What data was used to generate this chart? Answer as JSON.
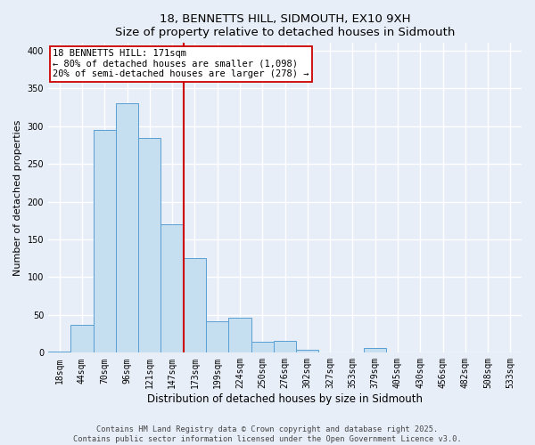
{
  "title": "18, BENNETTS HILL, SIDMOUTH, EX10 9XH",
  "subtitle": "Size of property relative to detached houses in Sidmouth",
  "xlabel": "Distribution of detached houses by size in Sidmouth",
  "ylabel": "Number of detached properties",
  "bar_labels": [
    "18sqm",
    "44sqm",
    "70sqm",
    "96sqm",
    "121sqm",
    "147sqm",
    "173sqm",
    "199sqm",
    "224sqm",
    "250sqm",
    "276sqm",
    "302sqm",
    "327sqm",
    "353sqm",
    "379sqm",
    "405sqm",
    "430sqm",
    "456sqm",
    "482sqm",
    "508sqm",
    "533sqm"
  ],
  "bar_heights": [
    2,
    37,
    295,
    330,
    284,
    170,
    125,
    42,
    46,
    15,
    16,
    4,
    0,
    0,
    6,
    0,
    0,
    0,
    0,
    0,
    0
  ],
  "bar_color": "#c5dff0",
  "bar_edge_color": "#5a9fd4",
  "vline_color": "#cc0000",
  "ylim": [
    0,
    410
  ],
  "yticks": [
    0,
    50,
    100,
    150,
    200,
    250,
    300,
    350,
    400
  ],
  "annotation_title": "18 BENNETTS HILL: 171sqm",
  "annotation_line1": "← 80% of detached houses are smaller (1,098)",
  "annotation_line2": "20% of semi-detached houses are larger (278) →",
  "annotation_box_color": "#ffffff",
  "annotation_box_edge": "#cc0000",
  "footer_line1": "Contains HM Land Registry data © Crown copyright and database right 2025.",
  "footer_line2": "Contains public sector information licensed under the Open Government Licence v3.0.",
  "background_color": "#e8eef8",
  "grid_color": "#ffffff",
  "vline_bar_index": 6
}
